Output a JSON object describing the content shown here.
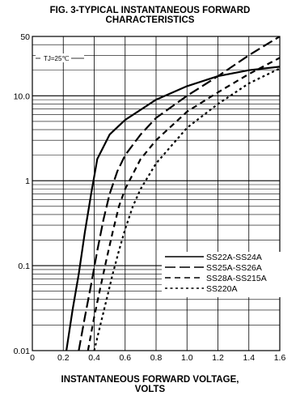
{
  "chart_data": {
    "type": "line",
    "title_line1": "FIG. 3-TYPICAL INSTANTANEOUS FORWARD",
    "title_line2": "CHARACTERISTICS",
    "xlabel_line1": "INSTANTANEOUS FORWARD VOLTAGE,",
    "xlabel_line2": "VOLTS",
    "ylabel": "",
    "annotation": "TJ=25℃",
    "xlim": [
      0,
      1.6
    ],
    "ylim": [
      0.01,
      50
    ],
    "y_scale": "log",
    "grid": true,
    "legend_position": "bottom-right",
    "x_ticks": [
      "0",
      "0.2",
      "0.4",
      "0.6",
      "0.8",
      "1.0",
      "1.2",
      "1.4",
      "1.6"
    ],
    "y_ticks": [
      {
        "value": 50,
        "label": "50"
      },
      {
        "value": 10,
        "label": "10.0"
      },
      {
        "value": 1,
        "label": "1"
      },
      {
        "value": 0.1,
        "label": "0.1"
      },
      {
        "value": 0.01,
        "label": "0.01"
      }
    ],
    "series": [
      {
        "name": "SS22A-SS24A",
        "dash": "solid",
        "x": [
          0.22,
          0.26,
          0.3,
          0.34,
          0.38,
          0.42,
          0.5,
          0.6,
          0.8,
          1.0,
          1.2,
          1.4,
          1.6
        ],
        "y": [
          0.01,
          0.03,
          0.08,
          0.25,
          0.7,
          1.8,
          3.5,
          5.2,
          9.0,
          13.0,
          17.0,
          20.0,
          22.0
        ]
      },
      {
        "name": "SS25A-SS26A",
        "dash": "long-dash",
        "x": [
          0.3,
          0.34,
          0.38,
          0.42,
          0.46,
          0.5,
          0.55,
          0.6,
          0.7,
          0.8,
          1.0,
          1.2,
          1.4,
          1.6
        ],
        "y": [
          0.01,
          0.025,
          0.06,
          0.15,
          0.35,
          0.7,
          1.3,
          2.0,
          3.5,
          5.5,
          10.0,
          17.0,
          30.0,
          50.0
        ]
      },
      {
        "name": "SS28A-SS215A",
        "dash": "dash",
        "x": [
          0.36,
          0.4,
          0.44,
          0.48,
          0.52,
          0.56,
          0.6,
          0.7,
          0.8,
          1.0,
          1.2,
          1.4,
          1.6
        ],
        "y": [
          0.01,
          0.025,
          0.055,
          0.12,
          0.25,
          0.5,
          0.8,
          1.8,
          3.0,
          6.5,
          11.0,
          18.0,
          28.0
        ]
      },
      {
        "name": "SS220A",
        "dash": "dot",
        "x": [
          0.4,
          0.44,
          0.48,
          0.52,
          0.56,
          0.6,
          0.65,
          0.7,
          0.8,
          1.0,
          1.2,
          1.4,
          1.6
        ],
        "y": [
          0.01,
          0.02,
          0.04,
          0.08,
          0.15,
          0.27,
          0.5,
          0.8,
          1.6,
          4.2,
          8.0,
          14.0,
          21.0
        ]
      }
    ]
  }
}
